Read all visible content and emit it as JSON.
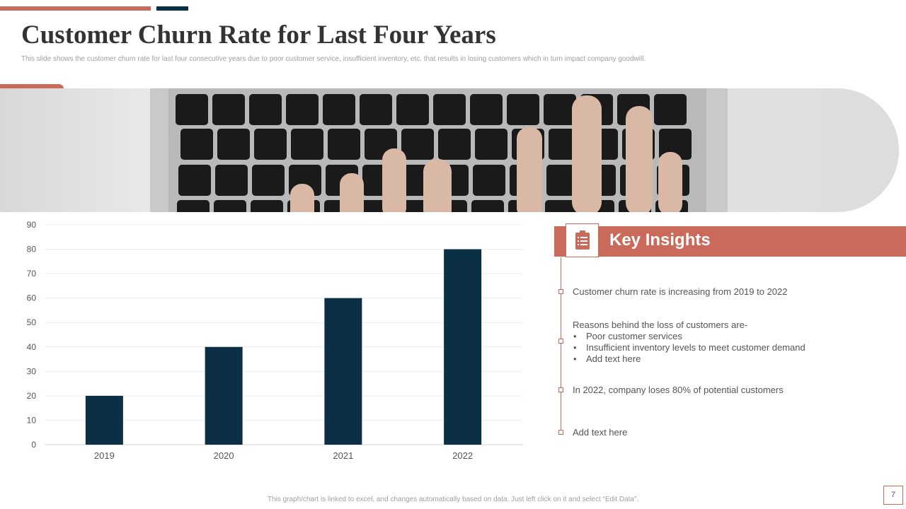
{
  "title": "Customer Churn Rate for Last Four Years",
  "subtitle": "This slide shows the customer churn rate for last four consecutive years due to poor customer service, insufficient inventory, etc. that results in losing customers which in turn impact company goodwill.",
  "colors": {
    "accent": "#c96a5a",
    "dark": "#0b2f45",
    "bar": "#0b3046"
  },
  "hero_image": {
    "icon": "keyboard-photo"
  },
  "chart_data": {
    "type": "bar",
    "categories": [
      "2019",
      "2020",
      "2021",
      "2022"
    ],
    "values": [
      20,
      40,
      60,
      80
    ],
    "title": "",
    "xlabel": "",
    "ylabel": "",
    "ylim": [
      0,
      90
    ],
    "yticks": [
      0,
      10,
      20,
      30,
      40,
      50,
      60,
      70,
      80,
      90
    ],
    "grid": true,
    "legend": "none"
  },
  "insights": {
    "title": "Key Insights",
    "icon": "clipboard-icon",
    "item1": "Customer churn rate is increasing from 2019 to 2022",
    "item2_heading": "Reasons behind the loss of customers are-",
    "item2_bullets": [
      "Poor customer services",
      "Insufficient inventory levels to meet customer demand",
      "Add text here"
    ],
    "item3": " In 2022, company loses 80% of potential customers",
    "item4": "Add text here"
  },
  "footer": "This graph/chart is linked to excel, and changes automatically based on data. Just left click on it and select “Edit Data”.",
  "page_number": "7"
}
